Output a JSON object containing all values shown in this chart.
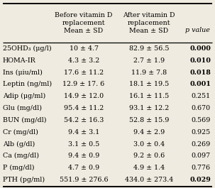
{
  "col_headers": [
    "",
    "Before vitamin D\nreplacement\nMean ± SD",
    "After vitamin D\nreplacement\nMean ± SD",
    "p value"
  ],
  "rows": [
    [
      "25OHD₃ (μg/l)",
      "10 ± 4.7",
      "82.9 ± 56.5",
      "0.000",
      true
    ],
    [
      "HOMA-IR",
      "4.3 ± 3.2",
      "2.7 ± 1.9",
      "0.010",
      true
    ],
    [
      "Ins (μiu/ml)",
      "17.6 ± 11.2",
      "11.9 ± 7.8",
      "0.018",
      true
    ],
    [
      "Leptin (ng/ml)",
      "12.9 ± 17. 6",
      "18.1 ± 19.5",
      "0.001",
      true
    ],
    [
      "Adip (μg/ml)",
      "14.9 ± 12.0",
      "16.1 ± 11.5",
      "0.251",
      false
    ],
    [
      "Glu (mg/dl)",
      "95.4 ± 11.2",
      "93.1 ± 12.2",
      "0.670",
      false
    ],
    [
      "BUN (mg/dl)",
      "54.2 ± 16.3",
      "52.8 ± 15.9",
      "0.569",
      false
    ],
    [
      "Cr (mg/dl)",
      "9.4 ± 3.1",
      "9.4 ± 2.9",
      "0.925",
      false
    ],
    [
      "Alb (g/dl)",
      "3.1 ± 0.5",
      "3.0 ± 0.4",
      "0.269",
      false
    ],
    [
      "Ca (mg/dl)",
      "9.4 ± 0.9",
      "9.2 ± 0.6",
      "0.097",
      false
    ],
    [
      "P (mg/dl)",
      "4.7 ± 0.9",
      "4.9 ± 1.4",
      "0.776",
      false
    ],
    [
      "PTH (pg/ml)",
      "551.9 ± 276.6",
      "434.0 ± 273.4",
      "0.029",
      true
    ]
  ],
  "bg_color": "#f0ebe0",
  "font_size": 6.8,
  "header_font_size": 6.8,
  "figsize": [
    3.03,
    2.65
  ],
  "dpi": 100
}
